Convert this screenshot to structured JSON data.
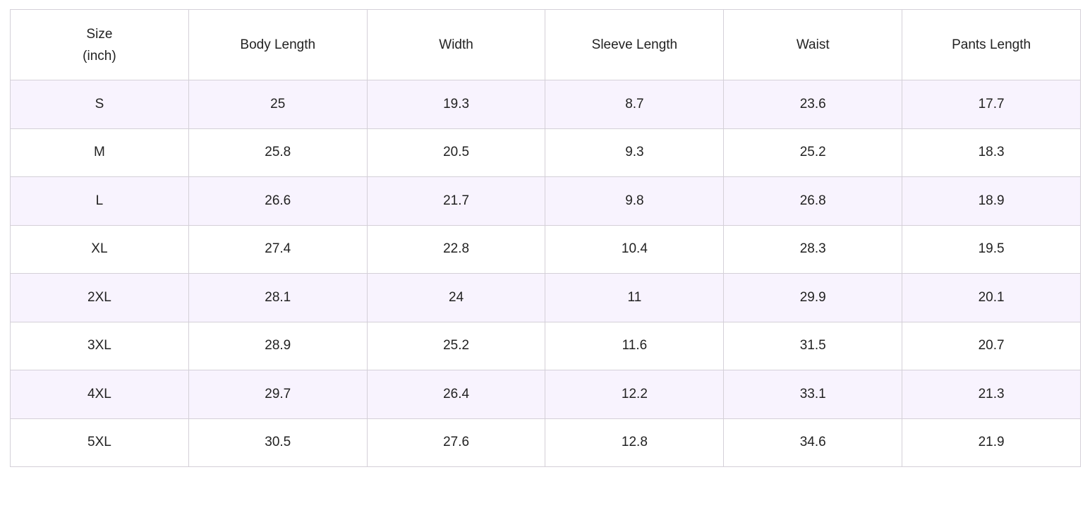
{
  "colors": {
    "striped_row_background": "#f8f3fe",
    "plain_row_background": "#ffffff",
    "border": "#d4d0d8",
    "text": "#222222"
  },
  "table": {
    "headers": {
      "size_line1": "Size",
      "size_line2": "(inch)",
      "body_length": "Body Length",
      "width": "Width",
      "sleeve_length": "Sleeve Length",
      "waist": "Waist",
      "pants_length": "Pants Length"
    },
    "rows": [
      [
        "S",
        "25",
        "19.3",
        "8.7",
        "23.6",
        "17.7"
      ],
      [
        "M",
        "25.8",
        "20.5",
        "9.3",
        "25.2",
        "18.3"
      ],
      [
        "L",
        "26.6",
        "21.7",
        "9.8",
        "26.8",
        "18.9"
      ],
      [
        "XL",
        "27.4",
        "22.8",
        "10.4",
        "28.3",
        "19.5"
      ],
      [
        "2XL",
        "28.1",
        "24",
        "11",
        "29.9",
        "20.1"
      ],
      [
        "3XL",
        "28.9",
        "25.2",
        "11.6",
        "31.5",
        "20.7"
      ],
      [
        "4XL",
        "29.7",
        "26.4",
        "12.2",
        "33.1",
        "21.3"
      ],
      [
        "5XL",
        "30.5",
        "27.6",
        "12.8",
        "34.6",
        "21.9"
      ]
    ]
  }
}
